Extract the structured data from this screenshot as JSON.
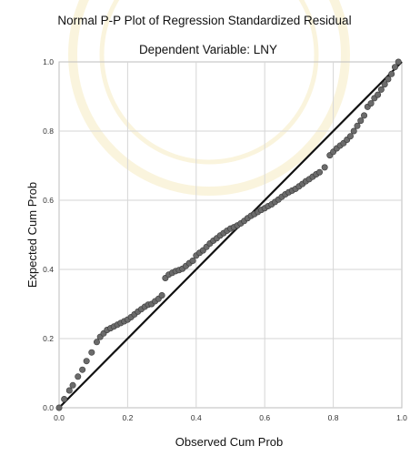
{
  "chart_data": {
    "type": "scatter",
    "title": "Normal P-P Plot of Regression Standardized Residual",
    "subtitle": "Dependent Variable: LNY",
    "xlabel": "Observed Cum Prob",
    "ylabel": "Expected Cum Prob",
    "xlim": [
      0,
      1
    ],
    "ylim": [
      0,
      1
    ],
    "xticks": [
      "0.0",
      "0.2",
      "0.4",
      "0.6",
      "0.8",
      "1.0"
    ],
    "yticks": [
      "0.0",
      "0.2",
      "0.4",
      "0.6",
      "0.8",
      "1.0"
    ],
    "grid": true,
    "reference_line": {
      "from": [
        0,
        0
      ],
      "to": [
        1,
        1
      ],
      "color": "#111111"
    },
    "point_color": "#6b6b6b",
    "x": [
      0.0,
      0.015,
      0.03,
      0.04,
      0.055,
      0.068,
      0.08,
      0.095,
      0.11,
      0.12,
      0.13,
      0.14,
      0.15,
      0.16,
      0.17,
      0.18,
      0.19,
      0.2,
      0.21,
      0.22,
      0.23,
      0.24,
      0.25,
      0.26,
      0.27,
      0.28,
      0.29,
      0.3,
      0.31,
      0.32,
      0.33,
      0.34,
      0.35,
      0.36,
      0.37,
      0.38,
      0.39,
      0.4,
      0.41,
      0.42,
      0.43,
      0.44,
      0.45,
      0.46,
      0.47,
      0.48,
      0.49,
      0.5,
      0.51,
      0.52,
      0.53,
      0.54,
      0.55,
      0.56,
      0.57,
      0.58,
      0.59,
      0.6,
      0.61,
      0.62,
      0.63,
      0.64,
      0.65,
      0.66,
      0.67,
      0.68,
      0.69,
      0.7,
      0.71,
      0.72,
      0.73,
      0.74,
      0.75,
      0.76,
      0.775,
      0.79,
      0.8,
      0.81,
      0.82,
      0.83,
      0.84,
      0.85,
      0.86,
      0.87,
      0.88,
      0.89,
      0.9,
      0.91,
      0.92,
      0.93,
      0.94,
      0.95,
      0.96,
      0.97,
      0.98,
      0.99
    ],
    "y": [
      0.0,
      0.025,
      0.05,
      0.065,
      0.09,
      0.11,
      0.135,
      0.16,
      0.19,
      0.205,
      0.215,
      0.225,
      0.23,
      0.235,
      0.24,
      0.245,
      0.25,
      0.255,
      0.262,
      0.27,
      0.278,
      0.285,
      0.292,
      0.298,
      0.3,
      0.308,
      0.315,
      0.325,
      0.375,
      0.385,
      0.39,
      0.395,
      0.398,
      0.402,
      0.41,
      0.418,
      0.425,
      0.44,
      0.448,
      0.455,
      0.465,
      0.475,
      0.483,
      0.49,
      0.498,
      0.505,
      0.512,
      0.518,
      0.522,
      0.527,
      0.533,
      0.54,
      0.548,
      0.555,
      0.56,
      0.566,
      0.572,
      0.577,
      0.583,
      0.588,
      0.595,
      0.602,
      0.61,
      0.617,
      0.623,
      0.628,
      0.633,
      0.64,
      0.647,
      0.655,
      0.661,
      0.668,
      0.675,
      0.681,
      0.695,
      0.73,
      0.74,
      0.75,
      0.758,
      0.765,
      0.775,
      0.785,
      0.8,
      0.815,
      0.83,
      0.845,
      0.87,
      0.88,
      0.895,
      0.905,
      0.92,
      0.935,
      0.95,
      0.965,
      0.985,
      1.0
    ]
  }
}
